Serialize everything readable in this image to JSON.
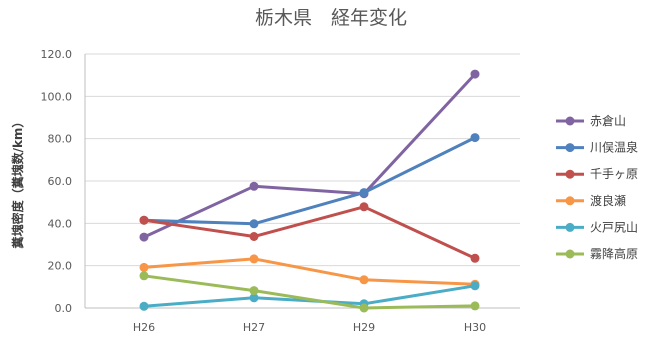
{
  "chart_data": {
    "type": "line",
    "title": "栃木県　経年変化",
    "xlabel": "",
    "ylabel": "糞塊密度（糞塊数/km）",
    "categories": [
      "H26",
      "H27",
      "H29",
      "H30"
    ],
    "ylim": [
      0,
      120
    ],
    "yticks": [
      "0.0",
      "20.0",
      "40.0",
      "60.0",
      "80.0",
      "100.0",
      "120.0"
    ],
    "grid": "horizontal",
    "legend": "right",
    "series": [
      {
        "name": "赤倉山",
        "color": "#8064a2",
        "values": [
          33.5,
          57.5,
          54.0,
          110.5
        ]
      },
      {
        "name": "川俣温泉",
        "color": "#4f81bd",
        "values": [
          41.5,
          39.8,
          54.5,
          80.5
        ]
      },
      {
        "name": "千手ヶ原",
        "color": "#c0504d",
        "values": [
          41.5,
          33.8,
          47.8,
          23.5
        ]
      },
      {
        "name": "渡良瀬",
        "color": "#f79646",
        "values": [
          19.2,
          23.2,
          13.3,
          11.2
        ]
      },
      {
        "name": "火戸尻山",
        "color": "#4bacc6",
        "values": [
          0.8,
          4.8,
          2.0,
          10.5
        ]
      },
      {
        "name": "霧降高原",
        "color": "#9bbb59",
        "values": [
          15.2,
          8.2,
          0.0,
          1.0
        ]
      }
    ]
  }
}
